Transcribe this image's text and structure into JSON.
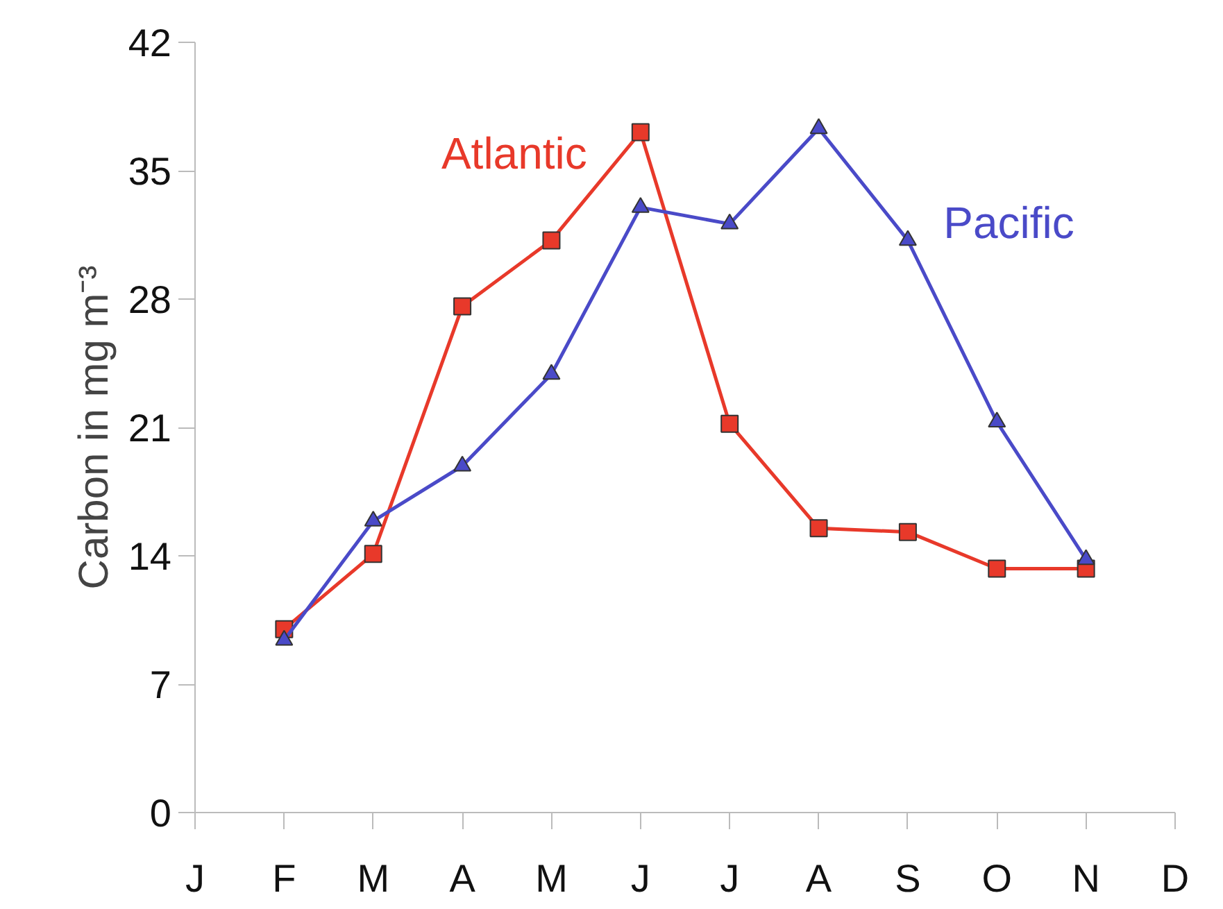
{
  "chart_data": {
    "type": "line",
    "ylabel": "Carbon in mg m⁻³",
    "categories": [
      "J",
      "F",
      "M",
      "A",
      "M",
      "J",
      "J",
      "A",
      "S",
      "O",
      "N",
      "D"
    ],
    "ylim": [
      0,
      42
    ],
    "yticks": [
      0,
      7,
      14,
      21,
      28,
      35,
      42
    ],
    "grid": false,
    "series": [
      {
        "name": "Atlantic",
        "color": "#e8392a",
        "marker": "square",
        "values": [
          null,
          10.0,
          14.1,
          27.6,
          31.2,
          37.1,
          21.2,
          15.5,
          15.3,
          13.3,
          13.3,
          null
        ]
      },
      {
        "name": "Pacific",
        "color": "#4a4ac8",
        "marker": "triangle",
        "values": [
          null,
          9.4,
          15.9,
          18.9,
          23.9,
          33.0,
          32.1,
          37.3,
          31.2,
          21.3,
          13.8,
          null
        ]
      }
    ]
  }
}
